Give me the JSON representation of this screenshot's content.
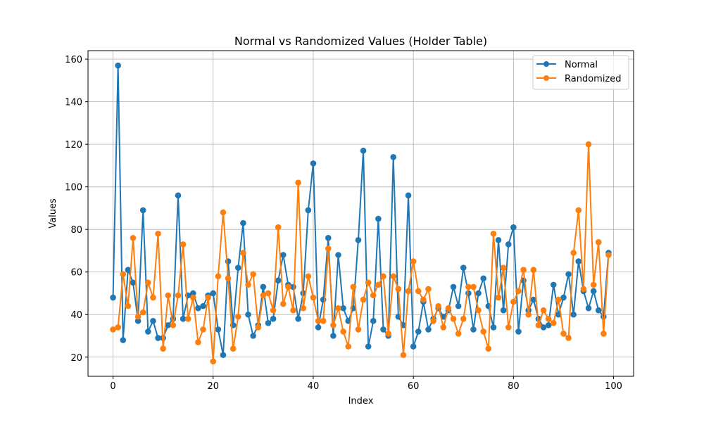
{
  "chart_data": {
    "type": "line",
    "title": "Normal vs Randomized Values (Holder Table)",
    "xlabel": "Index",
    "ylabel": "Values",
    "xlim": [
      -5,
      104
    ],
    "ylim": [
      11,
      164
    ],
    "xticks": [
      0,
      20,
      40,
      60,
      80,
      100
    ],
    "yticks": [
      20,
      40,
      60,
      80,
      100,
      120,
      140,
      160
    ],
    "grid": true,
    "legend_position": "top-right",
    "x": [
      0,
      1,
      2,
      3,
      4,
      5,
      6,
      7,
      8,
      9,
      10,
      11,
      12,
      13,
      14,
      15,
      16,
      17,
      18,
      19,
      20,
      21,
      22,
      23,
      24,
      25,
      26,
      27,
      28,
      29,
      30,
      31,
      32,
      33,
      34,
      35,
      36,
      37,
      38,
      39,
      40,
      41,
      42,
      43,
      44,
      45,
      46,
      47,
      48,
      49,
      50,
      51,
      52,
      53,
      54,
      55,
      56,
      57,
      58,
      59,
      60,
      61,
      62,
      63,
      64,
      65,
      66,
      67,
      68,
      69,
      70,
      71,
      72,
      73,
      74,
      75,
      76,
      77,
      78,
      79,
      80,
      81,
      82,
      83,
      84,
      85,
      86,
      87,
      88,
      89,
      90,
      91,
      92,
      93,
      94,
      95,
      96,
      97,
      98,
      99
    ],
    "series": [
      {
        "name": "Normal",
        "color": "#1f77b4",
        "values": [
          48,
          157,
          28,
          61,
          55,
          37,
          89,
          32,
          37,
          29,
          29,
          35,
          38,
          96,
          38,
          49,
          50,
          43,
          44,
          49,
          50,
          33,
          21,
          65,
          35,
          62,
          83,
          40,
          30,
          35,
          53,
          36,
          38,
          56,
          68,
          54,
          53,
          38,
          50,
          89,
          111,
          34,
          47,
          76,
          30,
          68,
          43,
          37,
          43,
          75,
          117,
          25,
          37,
          85,
          33,
          30,
          114,
          39,
          35,
          96,
          25,
          32,
          46,
          33,
          38,
          43,
          39,
          42,
          53,
          44,
          62,
          50,
          33,
          50,
          57,
          44,
          34,
          75,
          42,
          73,
          81,
          32,
          56,
          42,
          47,
          38,
          34,
          35,
          54,
          40,
          48,
          59,
          40,
          65,
          51,
          43,
          51,
          42,
          39,
          69
        ]
      },
      {
        "name": "Randomized",
        "color": "#ff7f0e",
        "values": [
          33,
          34,
          59,
          44,
          76,
          39,
          41,
          55,
          48,
          78,
          24,
          49,
          35,
          49,
          73,
          38,
          48,
          27,
          33,
          48,
          18,
          58,
          88,
          57,
          24,
          39,
          69,
          54,
          59,
          34,
          49,
          50,
          42,
          81,
          45,
          53,
          42,
          102,
          43,
          58,
          48,
          37,
          37,
          71,
          35,
          43,
          32,
          25,
          53,
          33,
          47,
          55,
          49,
          54,
          58,
          31,
          58,
          52,
          21,
          51,
          65,
          51,
          47,
          52,
          37,
          44,
          34,
          43,
          38,
          31,
          38,
          53,
          53,
          42,
          32,
          24,
          78,
          48,
          62,
          34,
          46,
          51,
          61,
          40,
          61,
          35,
          42,
          38,
          36,
          47,
          31,
          29,
          69,
          89,
          52,
          120,
          54,
          74,
          31,
          68
        ]
      }
    ]
  }
}
